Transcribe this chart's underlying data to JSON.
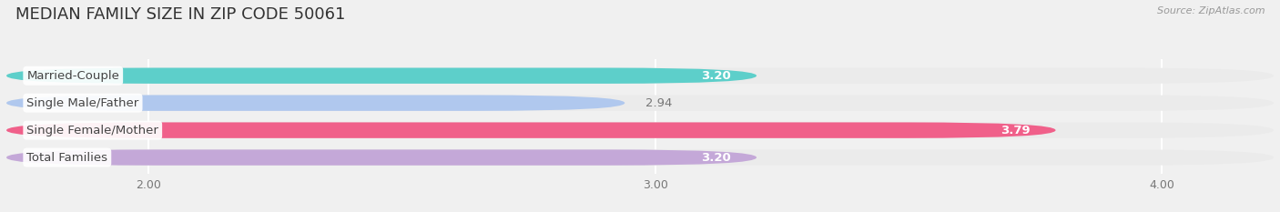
{
  "title": "MEDIAN FAMILY SIZE IN ZIP CODE 50061",
  "source": "Source: ZipAtlas.com",
  "categories": [
    "Married-Couple",
    "Single Male/Father",
    "Single Female/Mother",
    "Total Families"
  ],
  "values": [
    3.2,
    2.94,
    3.79,
    3.2
  ],
  "bar_colors": [
    "#5dcfca",
    "#b0c8ee",
    "#f0608a",
    "#c4a8d8"
  ],
  "bar_bg_colors": [
    "#ebebeb",
    "#ebebeb",
    "#ebebeb",
    "#ebebeb"
  ],
  "value_colors": [
    "white",
    "#888888",
    "white",
    "white"
  ],
  "xlim_left": 1.72,
  "xlim_right": 4.22,
  "xticks": [
    2.0,
    3.0,
    4.0
  ],
  "xtick_labels": [
    "2.00",
    "3.00",
    "4.00"
  ],
  "title_fontsize": 13,
  "label_fontsize": 9.5,
  "value_fontsize": 9.5,
  "bar_height": 0.58,
  "bar_gap": 0.42,
  "background_color": "#f0f0f0"
}
